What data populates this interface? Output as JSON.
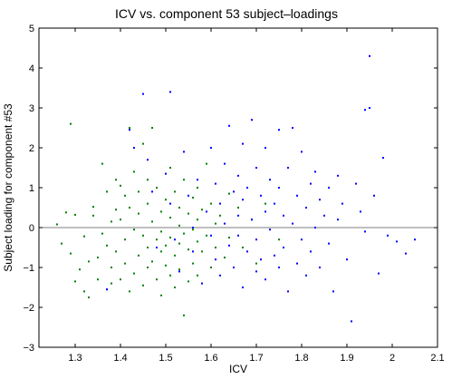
{
  "chart_data": {
    "type": "scatter",
    "title": "ICV vs. component 53 subject–loadings",
    "xlabel": "ICV",
    "ylabel": "Subject loading for component #53",
    "xlim": [
      1.22,
      2.1
    ],
    "ylim": [
      -3,
      5
    ],
    "xticks": [
      1.3,
      1.4,
      1.5,
      1.6,
      1.7,
      1.8,
      1.9,
      2.0,
      2.1
    ],
    "xtick_labels": [
      "1.3",
      "1.4",
      "1.5",
      "1.6",
      "1.7",
      "1.8",
      "1.9",
      "2",
      "2.1"
    ],
    "yticks": [
      -3,
      -2,
      -1,
      0,
      1,
      2,
      3,
      4,
      5
    ],
    "ytick_labels": [
      "−3",
      "−2",
      "−1",
      "0",
      "1",
      "2",
      "3",
      "4",
      "5"
    ],
    "reference_line_y": 0,
    "grid": false,
    "colors": {
      "green_group": "#008000",
      "blue_group": "#0000ff",
      "axis": "#000000",
      "zero_line": "#555555"
    },
    "series": [
      {
        "color": "#008000",
        "points": [
          [
            1.26,
            0.08
          ],
          [
            1.27,
            -0.4
          ],
          [
            1.28,
            0.38
          ],
          [
            1.29,
            2.6
          ],
          [
            1.29,
            -0.65
          ],
          [
            1.3,
            0.32
          ],
          [
            1.3,
            -1.35
          ],
          [
            1.31,
            -1.05
          ],
          [
            1.32,
            -0.22
          ],
          [
            1.32,
            -1.6
          ],
          [
            1.33,
            -0.85
          ],
          [
            1.33,
            -1.75
          ],
          [
            1.34,
            0.52
          ],
          [
            1.34,
            0.3
          ],
          [
            1.35,
            -0.75
          ],
          [
            1.35,
            -1.3
          ],
          [
            1.36,
            -0.15
          ],
          [
            1.36,
            1.6
          ],
          [
            1.37,
            0.9
          ],
          [
            1.37,
            -0.45
          ],
          [
            1.37,
            -1.55
          ],
          [
            1.38,
            0.15
          ],
          [
            1.38,
            -1.0
          ],
          [
            1.38,
            -1.4
          ],
          [
            1.39,
            1.2
          ],
          [
            1.39,
            0.45
          ],
          [
            1.39,
            -0.6
          ],
          [
            1.4,
            1.05
          ],
          [
            1.4,
            0.2
          ],
          [
            1.4,
            -1.3
          ],
          [
            1.41,
            0.8
          ],
          [
            1.41,
            -0.3
          ],
          [
            1.41,
            -0.9
          ],
          [
            1.42,
            2.5
          ],
          [
            1.42,
            0.5
          ],
          [
            1.42,
            -1.6
          ],
          [
            1.43,
            1.4
          ],
          [
            1.43,
            -0.05
          ],
          [
            1.43,
            -1.15
          ],
          [
            1.44,
            0.9
          ],
          [
            1.44,
            0.35
          ],
          [
            1.44,
            -0.7
          ],
          [
            1.45,
            2.1
          ],
          [
            1.45,
            -0.2
          ],
          [
            1.45,
            -1.45
          ],
          [
            1.46,
            1.2
          ],
          [
            1.46,
            0.6
          ],
          [
            1.46,
            -0.5
          ],
          [
            1.46,
            -1.0
          ],
          [
            1.47,
            0.15
          ],
          [
            1.47,
            -0.85
          ],
          [
            1.47,
            2.5
          ],
          [
            1.48,
            1.0
          ],
          [
            1.48,
            -0.3
          ],
          [
            1.48,
            -1.3
          ],
          [
            1.49,
            0.4
          ],
          [
            1.49,
            -0.1
          ],
          [
            1.49,
            -0.6
          ],
          [
            1.49,
            -1.7
          ],
          [
            1.5,
            0.7
          ],
          [
            1.5,
            -0.45
          ],
          [
            1.5,
            -0.95
          ],
          [
            1.51,
            1.5
          ],
          [
            1.51,
            0.25
          ],
          [
            1.51,
            -0.25
          ],
          [
            1.51,
            -1.2
          ],
          [
            1.52,
            0.9
          ],
          [
            1.52,
            -0.7
          ],
          [
            1.52,
            -1.5
          ],
          [
            1.53,
            0.5
          ],
          [
            1.53,
            0.05
          ],
          [
            1.53,
            -0.4
          ],
          [
            1.53,
            -1.05
          ],
          [
            1.54,
            1.2
          ],
          [
            1.54,
            -0.15
          ],
          [
            1.54,
            -2.2
          ],
          [
            1.55,
            0.35
          ],
          [
            1.55,
            -0.55
          ],
          [
            1.55,
            -1.35
          ],
          [
            1.56,
            0.75
          ],
          [
            1.56,
            -0.05
          ],
          [
            1.56,
            -0.9
          ],
          [
            1.57,
            1.0
          ],
          [
            1.57,
            0.2
          ],
          [
            1.57,
            -0.35
          ],
          [
            1.57,
            -1.2
          ],
          [
            1.58,
            0.45
          ],
          [
            1.58,
            -0.6
          ],
          [
            1.59,
            1.6
          ],
          [
            1.59,
            -0.2
          ],
          [
            1.6,
            0.6
          ],
          [
            1.6,
            -1.0
          ],
          [
            1.61,
            0.1
          ],
          [
            1.61,
            -0.5
          ],
          [
            1.62,
            0.3
          ],
          [
            1.63,
            -0.75
          ],
          [
            1.64,
            0.85
          ],
          [
            1.64,
            -0.25
          ],
          [
            1.66,
            0.5
          ],
          [
            1.67,
            -0.5
          ],
          [
            1.69,
            0.2
          ],
          [
            1.7,
            -0.9
          ],
          [
            1.72,
            0.6
          ],
          [
            1.75,
            -0.3
          ]
        ]
      },
      {
        "color": "#0000ff",
        "points": [
          [
            1.37,
            -1.55
          ],
          [
            1.42,
            2.45
          ],
          [
            1.43,
            2.0
          ],
          [
            1.45,
            3.35
          ],
          [
            1.46,
            1.7
          ],
          [
            1.47,
            0.9
          ],
          [
            1.48,
            -0.5
          ],
          [
            1.5,
            1.35
          ],
          [
            1.51,
            3.4
          ],
          [
            1.51,
            0.6
          ],
          [
            1.52,
            -0.3
          ],
          [
            1.53,
            -1.1
          ],
          [
            1.54,
            1.9
          ],
          [
            1.55,
            0.8
          ],
          [
            1.56,
            0.0
          ],
          [
            1.56,
            -0.6
          ],
          [
            1.57,
            1.2
          ],
          [
            1.58,
            -1.4
          ],
          [
            1.59,
            0.4
          ],
          [
            1.6,
            2.0
          ],
          [
            1.6,
            -0.2
          ],
          [
            1.61,
            1.1
          ],
          [
            1.61,
            -0.8
          ],
          [
            1.62,
            0.6
          ],
          [
            1.62,
            -1.2
          ],
          [
            1.63,
            1.6
          ],
          [
            1.63,
            0.1
          ],
          [
            1.64,
            2.55
          ],
          [
            1.64,
            -0.45
          ],
          [
            1.65,
            0.9
          ],
          [
            1.65,
            -1.0
          ],
          [
            1.66,
            1.3
          ],
          [
            1.66,
            0.3
          ],
          [
            1.66,
            -0.2
          ],
          [
            1.67,
            2.1
          ],
          [
            1.67,
            0.7
          ],
          [
            1.67,
            -1.5
          ],
          [
            1.68,
            1.0
          ],
          [
            1.68,
            -0.6
          ],
          [
            1.69,
            2.7
          ],
          [
            1.69,
            0.2
          ],
          [
            1.7,
            1.5
          ],
          [
            1.7,
            -0.3
          ],
          [
            1.7,
            -1.1
          ],
          [
            1.71,
            0.8
          ],
          [
            1.71,
            -0.8
          ],
          [
            1.72,
            2.0
          ],
          [
            1.72,
            0.4
          ],
          [
            1.72,
            -1.3
          ],
          [
            1.73,
            1.2
          ],
          [
            1.73,
            -0.05
          ],
          [
            1.74,
            0.6
          ],
          [
            1.74,
            -0.7
          ],
          [
            1.75,
            2.45
          ],
          [
            1.75,
            1.0
          ],
          [
            1.75,
            -1.0
          ],
          [
            1.76,
            0.3
          ],
          [
            1.76,
            -0.5
          ],
          [
            1.77,
            1.5
          ],
          [
            1.77,
            -1.6
          ],
          [
            1.78,
            2.5
          ],
          [
            1.78,
            0.1
          ],
          [
            1.79,
            0.8
          ],
          [
            1.79,
            -0.9
          ],
          [
            1.8,
            1.9
          ],
          [
            1.8,
            -0.3
          ],
          [
            1.81,
            0.5
          ],
          [
            1.81,
            -1.2
          ],
          [
            1.82,
            1.1
          ],
          [
            1.82,
            -0.6
          ],
          [
            1.83,
            1.4
          ],
          [
            1.83,
            0.0
          ],
          [
            1.84,
            0.7
          ],
          [
            1.84,
            -1.0
          ],
          [
            1.85,
            0.3
          ],
          [
            1.86,
            1.0
          ],
          [
            1.86,
            -0.4
          ],
          [
            1.87,
            -1.6
          ],
          [
            1.88,
            1.3
          ],
          [
            1.88,
            0.2
          ],
          [
            1.89,
            0.6
          ],
          [
            1.9,
            -0.8
          ],
          [
            1.91,
            -2.35
          ],
          [
            1.92,
            1.1
          ],
          [
            1.93,
            0.4
          ],
          [
            1.94,
            -0.1
          ],
          [
            1.94,
            2.95
          ],
          [
            1.95,
            4.3
          ],
          [
            1.95,
            3.0
          ],
          [
            1.96,
            0.8
          ],
          [
            1.97,
            -1.15
          ],
          [
            1.98,
            1.75
          ],
          [
            1.99,
            -0.2
          ],
          [
            2.01,
            -0.35
          ],
          [
            2.03,
            -0.65
          ],
          [
            2.05,
            -0.3
          ]
        ]
      }
    ]
  }
}
